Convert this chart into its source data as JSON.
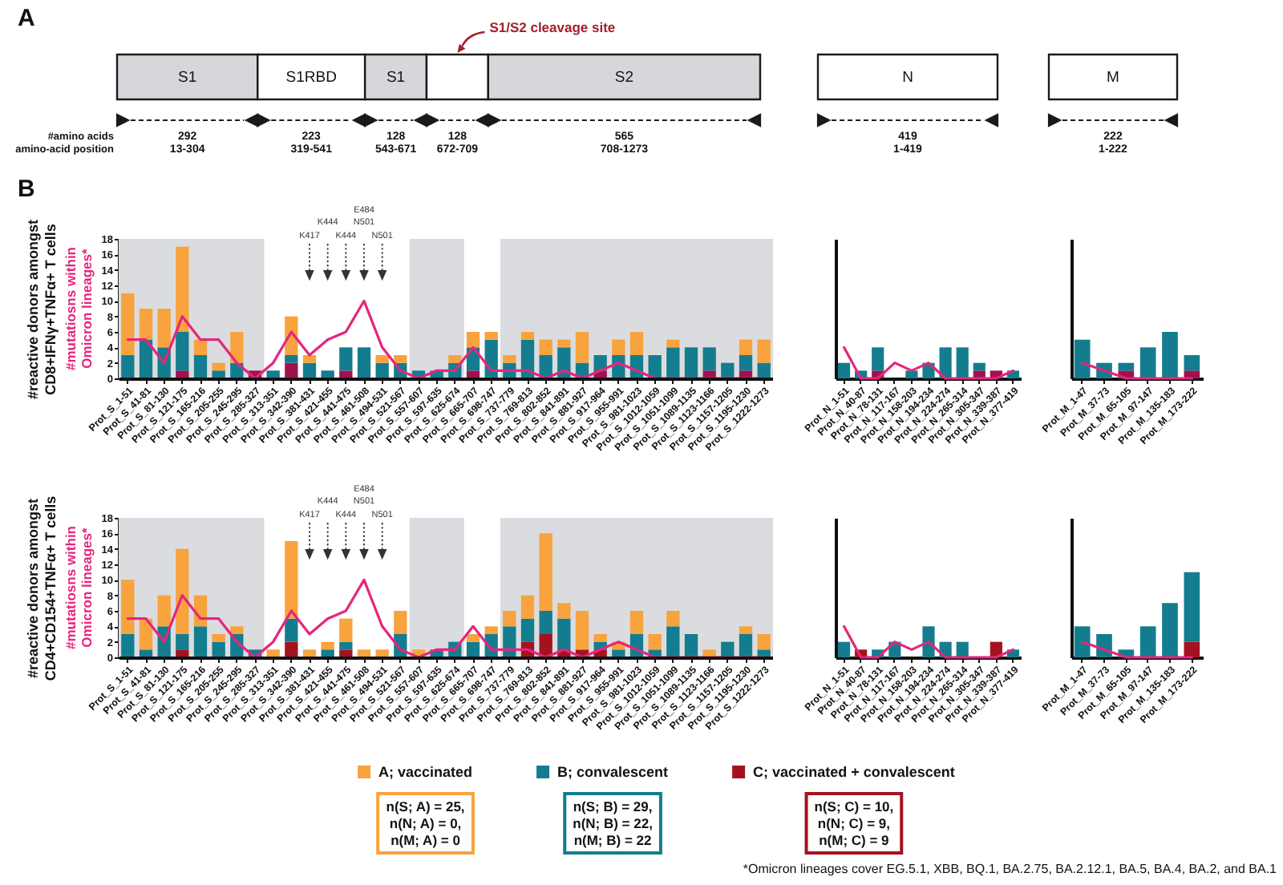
{
  "chart_data": [
    {
      "type": "other",
      "title": "A",
      "categories": [
        "S1",
        "S1RBD",
        "S1",
        null,
        "S2"
      ],
      "values": [
        292,
        223,
        128,
        128,
        565
      ],
      "colors": [
        "#d5d7da",
        "#ffffff",
        "#d5d7da",
        "#ffffff",
        "#d5d7da"
      ],
      "data_labels": true,
      "annotations": [
        "#amino acids",
        "amino-acid position",
        "S1/S2 cleavage site",
        "13-304",
        "319-541",
        "543-671",
        "672-709",
        "708-1273"
      ]
    },
    {
      "type": "other",
      "categories": [
        "N"
      ],
      "values": [
        419
      ],
      "colors": [
        "#ffffff"
      ],
      "data_labels": true,
      "annotations": [
        "1-419"
      ]
    },
    {
      "type": "other",
      "categories": [
        "M"
      ],
      "values": [
        222
      ],
      "colors": [
        "#ffffff"
      ],
      "data_labels": true,
      "annotations": [
        "1-222"
      ]
    },
    {
      "type": "bar",
      "title": "B",
      "ylabel": "#reactive donors amongst CD8+IFNγ+TNFα+ T cells",
      "stacked": true,
      "ylim": [
        0,
        18
      ],
      "yticks": [
        0,
        2,
        4,
        6,
        8,
        10,
        12,
        14,
        16,
        18
      ],
      "categories": [
        "Prot_S_1-51",
        "Prot_S_41-81",
        "Prot_S_81-130",
        "Prot_S_121-175",
        "Prot_S_165-216",
        "Prot_S_205-255",
        "Prot_S_245-295",
        "Prot_S_285-327",
        "Prot_S_313-351",
        "Prot_S_342-390",
        "Prot_S_381-431",
        "Prot_S_421-455",
        "Prot_S_441-475",
        "Prot_S_461-508",
        "Prot_S_494-531",
        "Prot_S_521-567",
        "Prot_S_557-607",
        "Prot_S_597-635",
        "Prot_S_625-674",
        "Prot_S_665-707",
        "Prot_S_698-747",
        "Prot_S_737-779",
        "Prot_S_769-813",
        "Prot_S_802-852",
        "Prot_S_841-891",
        "Prot_S_881-927",
        "Prot_S_917-964",
        "Prot_S_955-991",
        "Prot_S_981-1023",
        "Prot_S_1012-1059",
        "Prot_S_1051-1099",
        "Prot_S_1089-1135",
        "Prot_S_1123-1166",
        "Prot_S_1157-1205",
        "Prot_S_1195-1230",
        "Prot_S_1222-1273"
      ],
      "series": [
        {
          "color": "#a0124e",
          "values": [
            null,
            null,
            null,
            1,
            null,
            null,
            null,
            1,
            null,
            2,
            null,
            null,
            1,
            null,
            null,
            null,
            null,
            null,
            null,
            1,
            null,
            null,
            null,
            null,
            null,
            null,
            1,
            null,
            null,
            null,
            null,
            null,
            1,
            null,
            1,
            null
          ]
        },
        {
          "color": "#137d8f",
          "values": [
            3,
            5,
            4,
            5,
            3,
            1,
            2,
            null,
            1,
            1,
            2,
            1,
            3,
            4,
            2,
            2,
            1,
            1,
            2,
            3,
            5,
            2,
            5,
            3,
            4,
            2,
            2,
            3,
            3,
            3,
            4,
            4,
            3,
            2,
            2,
            2
          ]
        },
        {
          "color": "#f8a33d",
          "values": [
            8,
            4,
            5,
            11,
            2,
            1,
            4,
            null,
            null,
            5,
            1,
            null,
            null,
            null,
            1,
            1,
            null,
            null,
            1,
            2,
            1,
            1,
            1,
            2,
            1,
            4,
            null,
            2,
            3,
            null,
            1,
            null,
            null,
            null,
            2,
            3
          ]
        },
        {
          "type": "line",
          "name": "#mutatiosns within Omicron lineages*",
          "color": "#e5267c",
          "values": [
            5,
            5,
            2,
            8,
            5,
            5,
            2,
            0,
            2,
            6,
            3,
            5,
            6,
            10,
            4,
            1,
            0,
            1,
            1,
            4,
            1,
            1,
            1,
            0,
            1,
            0,
            1,
            2,
            1,
            0,
            0,
            0,
            0,
            0,
            0,
            0
          ]
        }
      ],
      "bands": [
        {
          "axis": "x",
          "from": "Prot_S_1-51",
          "to": "Prot_S_285-327",
          "color": "#dbdcdf"
        },
        {
          "axis": "x",
          "from": "Prot_S_557-607",
          "to": "Prot_S_625-674",
          "color": "#dbdcdf"
        },
        {
          "axis": "x",
          "from": "Prot_S_737-779",
          "to": "Prot_S_1222-1273",
          "color": "#dbdcdf"
        }
      ],
      "annotations": [
        "K417",
        "K444",
        "K444",
        "E484 N501",
        "N501"
      ]
    },
    {
      "type": "bar",
      "stacked": true,
      "ylim": [
        0,
        18
      ],
      "tick_labels": "x",
      "categories": [
        "Prot_N_1-51",
        "Prot_N_40-87",
        "Prot_N_78-131",
        "Prot_N_117-167",
        "Prot_N_158-203",
        "Prot_N_194-234",
        "Prot_N_224-274",
        "Prot_N_265-314",
        "Prot_N_305-347",
        "Prot_N_339-387",
        "Prot_N_377-419"
      ],
      "series": [
        {
          "color": "#a0124e",
          "values": [
            null,
            null,
            1,
            null,
            null,
            null,
            null,
            null,
            1,
            1,
            null
          ]
        },
        {
          "color": "#137d8f",
          "values": [
            2,
            1,
            3,
            null,
            1,
            2,
            4,
            4,
            1,
            null,
            1
          ]
        },
        {
          "type": "line",
          "color": "#e5267c",
          "values": [
            4,
            0,
            0,
            2,
            1,
            2,
            0,
            0,
            0,
            0,
            1
          ]
        }
      ]
    },
    {
      "type": "bar",
      "stacked": true,
      "ylim": [
        0,
        18
      ],
      "tick_labels": "x",
      "categories": [
        "Prot_M_1-47",
        "Prot_M_37-73",
        "Prot_M_65-105",
        "Prot_M_97-147",
        "Prot_M_135-183",
        "Prot_M_173-222"
      ],
      "series": [
        {
          "color": "#a0124e",
          "values": [
            null,
            null,
            1,
            null,
            null,
            1
          ]
        },
        {
          "color": "#137d8f",
          "values": [
            5,
            2,
            1,
            4,
            6,
            2
          ]
        },
        {
          "type": "line",
          "color": "#e5267c",
          "values": [
            2,
            1,
            0,
            0,
            0,
            0
          ]
        }
      ]
    },
    {
      "type": "bar",
      "ylabel": "#reactive donors amongst CD4+CD154+TNFα+ T cells",
      "stacked": true,
      "ylim": [
        0,
        18
      ],
      "yticks": [
        0,
        2,
        4,
        6,
        8,
        10,
        12,
        14,
        16,
        18
      ],
      "legend": "bottom",
      "categories": [
        "Prot_S_1-51",
        "Prot_S_41-81",
        "Prot_S_81-130",
        "Prot_S_121-175",
        "Prot_S_165-216",
        "Prot_S_205-255",
        "Prot_S_245-295",
        "Prot_S_285-327",
        "Prot_S_313-351",
        "Prot_S_342-390",
        "Prot_S_381-431",
        "Prot_S_421-455",
        "Prot_S_441-475",
        "Prot_S_461-508",
        "Prot_S_494-531",
        "Prot_S_521-567",
        "Prot_S_557-607",
        "Prot_S_597-635",
        "Prot_S_625-674",
        "Prot_S_665-707",
        "Prot_S_698-747",
        "Prot_S_737-779",
        "Prot_S_769-813",
        "Prot_S_802-852",
        "Prot_S_841-891",
        "Prot_S_881-927",
        "Prot_S_917-964",
        "Prot_S_955-991",
        "Prot_S_981-1023",
        "Prot_S_1012-1059",
        "Prot_S_1051-1099",
        "Prot_S_1089-1135",
        "Prot_S_1123-1166",
        "Prot_S_1157-1205",
        "Prot_S_1195-1230",
        "Prot_S_1222-1273"
      ],
      "series": [
        {
          "name": "C; vaccinated + convalescent",
          "color": "#a5121f",
          "values": [
            null,
            null,
            null,
            1,
            null,
            null,
            null,
            null,
            null,
            2,
            null,
            null,
            1,
            null,
            null,
            null,
            null,
            null,
            null,
            null,
            null,
            null,
            2,
            3,
            1,
            1,
            1,
            null,
            null,
            null,
            null,
            null,
            null,
            null,
            null,
            null
          ]
        },
        {
          "name": "B; convalescent",
          "color": "#137d8f",
          "values": [
            3,
            1,
            4,
            2,
            4,
            2,
            3,
            1,
            null,
            3,
            null,
            1,
            1,
            null,
            null,
            3,
            null,
            1,
            2,
            2,
            3,
            4,
            3,
            3,
            4,
            null,
            1,
            1,
            3,
            1,
            4,
            3,
            null,
            2,
            3,
            1
          ]
        },
        {
          "name": "A; vaccinated",
          "color": "#f8a33d",
          "values": [
            7,
            4,
            4,
            11,
            4,
            1,
            1,
            null,
            1,
            10,
            1,
            1,
            3,
            1,
            1,
            3,
            1,
            null,
            null,
            1,
            1,
            2,
            3,
            10,
            2,
            5,
            1,
            1,
            3,
            2,
            2,
            null,
            1,
            null,
            1,
            2
          ]
        },
        {
          "type": "line",
          "name": "#mutatiosns within Omicron lineages*",
          "color": "#e5267c",
          "values": [
            5,
            5,
            2,
            8,
            5,
            5,
            2,
            0,
            2,
            6,
            3,
            5,
            6,
            10,
            4,
            1,
            0,
            1,
            1,
            4,
            1,
            1,
            1,
            0,
            1,
            0,
            1,
            2,
            1,
            0,
            0,
            0,
            0,
            0,
            0,
            0
          ]
        }
      ],
      "bands": [
        {
          "axis": "x",
          "from": "Prot_S_1-51",
          "to": "Prot_S_285-327",
          "color": "#dbdcdf"
        },
        {
          "axis": "x",
          "from": "Prot_S_557-607",
          "to": "Prot_S_625-674",
          "color": "#dbdcdf"
        },
        {
          "axis": "x",
          "from": "Prot_S_737-779",
          "to": "Prot_S_1222-1273",
          "color": "#dbdcdf"
        }
      ],
      "annotations": [
        "K417",
        "K444",
        "K444",
        "E484 N501",
        "N501",
        "n(S; A) = 25, n(N; A) = 0, n(M; A) = 0",
        "n(S; B) = 29, n(N; B) = 22, n(M; B) = 22",
        "n(S; C) = 10, n(N; C) = 9, n(M; C) = 9",
        "*Omicron lineages cover EG.5.1, XBB, BQ.1, BA.2.75, BA.2.12.1, BA.5, BA.4, BA.2, and BA.1"
      ]
    },
    {
      "type": "bar",
      "stacked": true,
      "ylim": [
        0,
        18
      ],
      "tick_labels": "x",
      "categories": [
        "Prot_N_1-51",
        "Prot_N_40-87",
        "Prot_N_78-131",
        "Prot_N_117-167",
        "Prot_N_158-203",
        "Prot_N_194-234",
        "Prot_N_224-274",
        "Prot_N_265-314",
        "Prot_N_305-347",
        "Prot_N_339-387",
        "Prot_N_377-419"
      ],
      "series": [
        {
          "color": "#a5121f",
          "values": [
            null,
            1,
            null,
            null,
            null,
            null,
            null,
            null,
            null,
            2,
            null
          ]
        },
        {
          "color": "#137d8f",
          "values": [
            2,
            null,
            1,
            2,
            null,
            4,
            2,
            2,
            null,
            null,
            1
          ]
        },
        {
          "type": "line",
          "color": "#e5267c",
          "values": [
            4,
            0,
            0,
            2,
            1,
            2,
            0,
            0,
            0,
            0,
            1
          ]
        }
      ]
    },
    {
      "type": "bar",
      "stacked": true,
      "ylim": [
        0,
        18
      ],
      "tick_labels": "x",
      "categories": [
        "Prot_M_1-47",
        "Prot_M_37-73",
        "Prot_M_65-105",
        "Prot_M_97-147",
        "Prot_M_135-183",
        "Prot_M_173-222"
      ],
      "series": [
        {
          "color": "#a5121f",
          "values": [
            null,
            null,
            null,
            null,
            null,
            2
          ]
        },
        {
          "color": "#137d8f",
          "values": [
            4,
            3,
            1,
            4,
            7,
            9
          ]
        },
        {
          "type": "line",
          "color": "#e5267c",
          "values": [
            2,
            1,
            0,
            0,
            0,
            0
          ]
        }
      ]
    }
  ]
}
